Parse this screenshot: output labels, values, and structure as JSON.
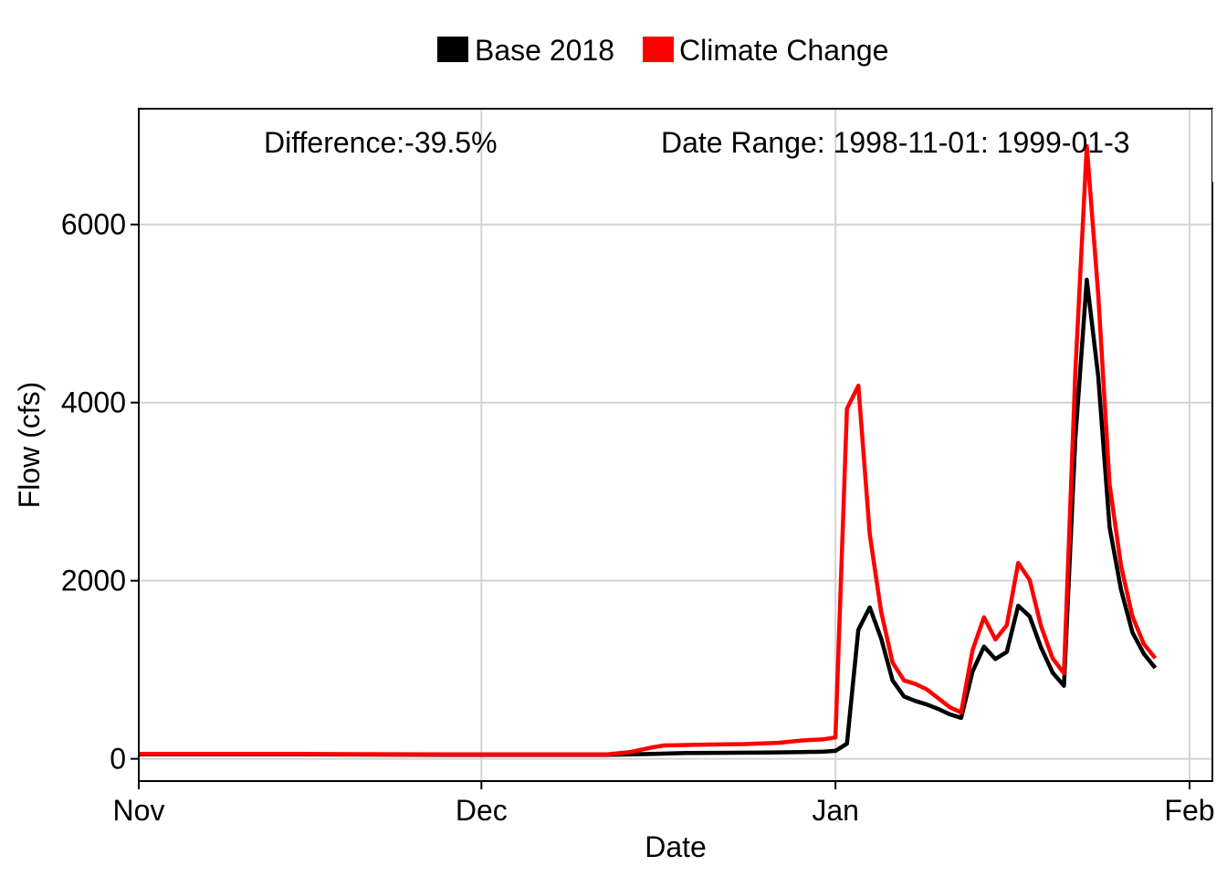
{
  "chart_data": {
    "type": "line",
    "xlabel": "Date",
    "ylabel": "Flow (cfs)",
    "xlim": [
      "1998-11-01",
      "1999-02-03"
    ],
    "ylim": [
      -250,
      7300
    ],
    "grid": true,
    "legend_position": "top",
    "x_ticks": [
      {
        "date": "1998-11-01",
        "label": "Nov"
      },
      {
        "date": "1998-12-01",
        "label": "Dec"
      },
      {
        "date": "1999-01-01",
        "label": "Jan"
      },
      {
        "date": "1999-02-01",
        "label": "Feb"
      }
    ],
    "y_ticks": [
      0,
      2000,
      4000,
      6000
    ],
    "annotations": [
      {
        "text": "Difference:-39.5%"
      },
      {
        "text": "Date Range: 1998-11-01: 1999-01-3"
      }
    ],
    "series": [
      {
        "name": "Base 2018",
        "color": "#000000",
        "points": [
          [
            "1998-11-01",
            50
          ],
          [
            "1998-11-15",
            50
          ],
          [
            "1998-11-28",
            45
          ],
          [
            "1998-12-12",
            45
          ],
          [
            "1998-12-16",
            55
          ],
          [
            "1998-12-19",
            65
          ],
          [
            "1998-12-26",
            70
          ],
          [
            "1998-12-29",
            75
          ],
          [
            "1998-12-31",
            80
          ],
          [
            "1999-01-01",
            90
          ],
          [
            "1999-01-02",
            170
          ],
          [
            "1999-01-03",
            1450
          ],
          [
            "1999-01-04",
            1700
          ],
          [
            "1999-01-05",
            1350
          ],
          [
            "1999-01-06",
            880
          ],
          [
            "1999-01-07",
            700
          ],
          [
            "1999-01-08",
            650
          ],
          [
            "1999-01-09",
            610
          ],
          [
            "1999-01-10",
            560
          ],
          [
            "1999-01-11",
            500
          ],
          [
            "1999-01-12",
            460
          ],
          [
            "1999-01-13",
            980
          ],
          [
            "1999-01-14",
            1260
          ],
          [
            "1999-01-15",
            1120
          ],
          [
            "1999-01-16",
            1200
          ],
          [
            "1999-01-17",
            1720
          ],
          [
            "1999-01-18",
            1600
          ],
          [
            "1999-01-19",
            1250
          ],
          [
            "1999-01-20",
            970
          ],
          [
            "1999-01-21",
            820
          ],
          [
            "1999-01-22",
            3600
          ],
          [
            "1999-01-23",
            5380
          ],
          [
            "1999-01-24",
            4300
          ],
          [
            "1999-01-25",
            2600
          ],
          [
            "1999-01-26",
            1900
          ],
          [
            "1999-01-27",
            1420
          ],
          [
            "1999-01-28",
            1180
          ],
          [
            "1999-01-29",
            1020
          ]
        ]
      },
      {
        "name": "Climate Change",
        "color": "#ff0000",
        "points": [
          [
            "1998-11-01",
            55
          ],
          [
            "1998-11-15",
            55
          ],
          [
            "1998-11-28",
            50
          ],
          [
            "1998-12-12",
            50
          ],
          [
            "1998-12-14",
            75
          ],
          [
            "1998-12-16",
            130
          ],
          [
            "1998-12-17",
            150
          ],
          [
            "1998-12-19",
            155
          ],
          [
            "1998-12-21",
            160
          ],
          [
            "1998-12-24",
            165
          ],
          [
            "1998-12-27",
            180
          ],
          [
            "1998-12-29",
            205
          ],
          [
            "1998-12-31",
            220
          ],
          [
            "1999-01-01",
            240
          ],
          [
            "1999-01-02",
            3930
          ],
          [
            "1999-01-03",
            4190
          ],
          [
            "1999-01-04",
            2520
          ],
          [
            "1999-01-05",
            1650
          ],
          [
            "1999-01-06",
            1080
          ],
          [
            "1999-01-07",
            880
          ],
          [
            "1999-01-08",
            840
          ],
          [
            "1999-01-09",
            780
          ],
          [
            "1999-01-10",
            680
          ],
          [
            "1999-01-11",
            580
          ],
          [
            "1999-01-12",
            520
          ],
          [
            "1999-01-13",
            1220
          ],
          [
            "1999-01-14",
            1590
          ],
          [
            "1999-01-15",
            1340
          ],
          [
            "1999-01-16",
            1500
          ],
          [
            "1999-01-17",
            2200
          ],
          [
            "1999-01-18",
            2010
          ],
          [
            "1999-01-19",
            1490
          ],
          [
            "1999-01-20",
            1130
          ],
          [
            "1999-01-21",
            960
          ],
          [
            "1999-01-22",
            4350
          ],
          [
            "1999-01-23",
            6880
          ],
          [
            "1999-01-24",
            5220
          ],
          [
            "1999-01-25",
            3080
          ],
          [
            "1999-01-26",
            2170
          ],
          [
            "1999-01-27",
            1600
          ],
          [
            "1999-01-28",
            1290
          ],
          [
            "1999-01-29",
            1130
          ]
        ]
      }
    ]
  }
}
